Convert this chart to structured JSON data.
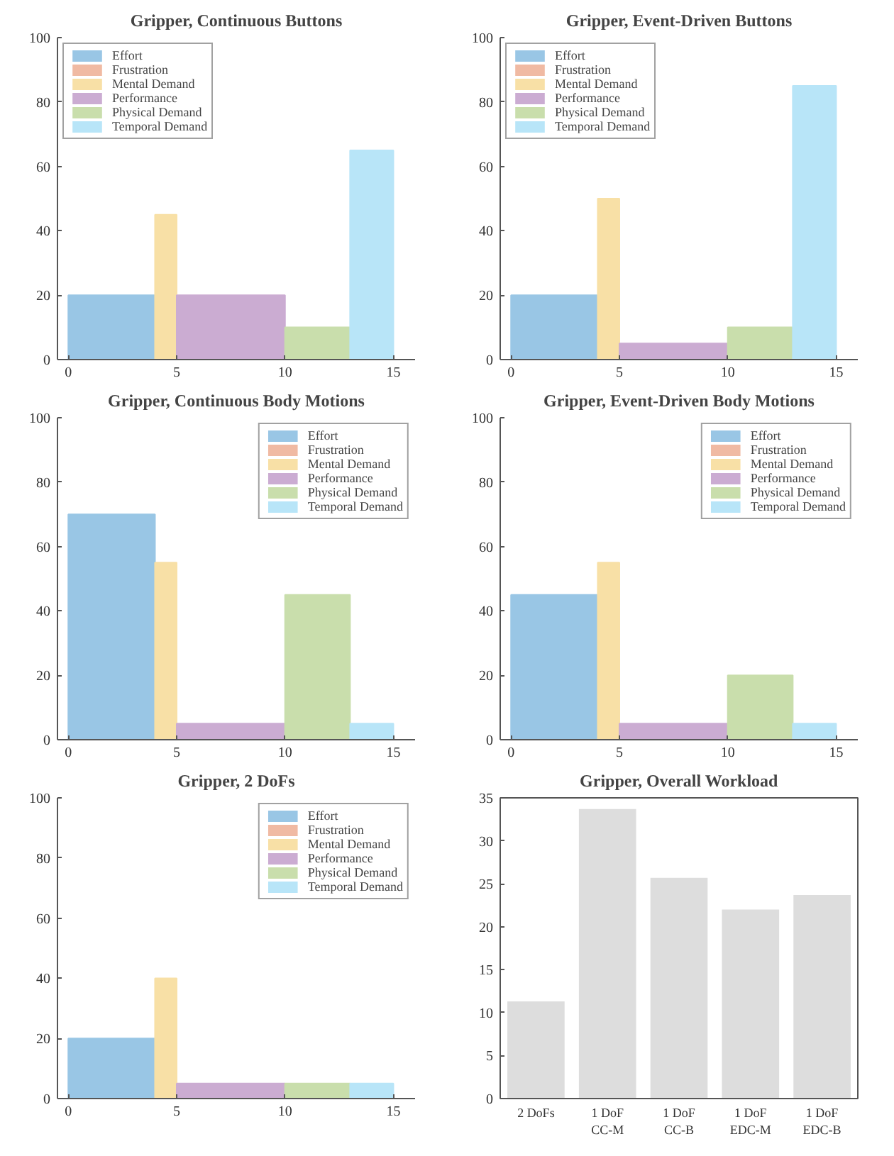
{
  "chart_data": [
    {
      "type": "histogram",
      "title": "Gripper, Continuous Buttons",
      "bins": [
        0,
        4,
        5,
        10,
        13,
        15
      ],
      "xlim": [
        -0.5,
        16
      ],
      "ylim": [
        0,
        100
      ],
      "xticks": [
        0,
        5,
        10,
        15
      ],
      "yticks": [
        0,
        20,
        40,
        60,
        80,
        100
      ],
      "grid": false,
      "legend": "top left",
      "series": [
        {
          "name": "Effort",
          "color": "#99c6e5",
          "values": [
            20,
            null,
            null,
            null,
            null
          ]
        },
        {
          "name": "Frustration",
          "color": "#f0baa3",
          "values": [
            0,
            0,
            0,
            0,
            0
          ]
        },
        {
          "name": "Mental Demand",
          "color": "#f8e0a6",
          "values": [
            null,
            45,
            null,
            null,
            null
          ]
        },
        {
          "name": "Performance",
          "color": "#cbacd2",
          "values": [
            null,
            null,
            20,
            null,
            null
          ]
        },
        {
          "name": "Physical Demand",
          "color": "#c9deac",
          "values": [
            null,
            null,
            null,
            10,
            null
          ]
        },
        {
          "name": "Temporal Demand",
          "color": "#b8e5f8",
          "values": [
            null,
            null,
            null,
            null,
            65
          ]
        }
      ]
    },
    {
      "type": "histogram",
      "title": "Gripper, Event-Driven Buttons",
      "bins": [
        0,
        4,
        5,
        10,
        13,
        15
      ],
      "xlim": [
        -0.5,
        16
      ],
      "ylim": [
        0,
        100
      ],
      "xticks": [
        0,
        5,
        10,
        15
      ],
      "yticks": [
        0,
        20,
        40,
        60,
        80,
        100
      ],
      "grid": false,
      "legend": "top left",
      "series": [
        {
          "name": "Effort",
          "color": "#99c6e5",
          "values": [
            20,
            null,
            null,
            null,
            null
          ]
        },
        {
          "name": "Frustration",
          "color": "#f0baa3",
          "values": [
            0,
            0,
            0,
            0,
            0
          ]
        },
        {
          "name": "Mental Demand",
          "color": "#f8e0a6",
          "values": [
            null,
            50,
            null,
            null,
            null
          ]
        },
        {
          "name": "Performance",
          "color": "#cbacd2",
          "values": [
            null,
            null,
            5,
            null,
            null
          ]
        },
        {
          "name": "Physical Demand",
          "color": "#c9deac",
          "values": [
            null,
            null,
            null,
            10,
            null
          ]
        },
        {
          "name": "Temporal Demand",
          "color": "#b8e5f8",
          "values": [
            null,
            null,
            null,
            null,
            85
          ]
        }
      ]
    },
    {
      "type": "histogram",
      "title": "Gripper, Continuous Body Motions",
      "bins": [
        0,
        4,
        5,
        10,
        13,
        15
      ],
      "xlim": [
        -0.5,
        16
      ],
      "ylim": [
        0,
        100
      ],
      "xticks": [
        0,
        5,
        10,
        15
      ],
      "yticks": [
        0,
        20,
        40,
        60,
        80,
        100
      ],
      "grid": false,
      "legend": "top right",
      "series": [
        {
          "name": "Effort",
          "color": "#99c6e5",
          "values": [
            70,
            null,
            null,
            null,
            null
          ]
        },
        {
          "name": "Frustration",
          "color": "#f0baa3",
          "values": [
            0,
            0,
            0,
            0,
            0
          ]
        },
        {
          "name": "Mental Demand",
          "color": "#f8e0a6",
          "values": [
            null,
            55,
            null,
            null,
            null
          ]
        },
        {
          "name": "Performance",
          "color": "#cbacd2",
          "values": [
            null,
            null,
            5,
            null,
            null
          ]
        },
        {
          "name": "Physical Demand",
          "color": "#c9deac",
          "values": [
            null,
            null,
            null,
            45,
            null
          ]
        },
        {
          "name": "Temporal Demand",
          "color": "#b8e5f8",
          "values": [
            null,
            null,
            null,
            null,
            5
          ]
        }
      ]
    },
    {
      "type": "histogram",
      "title": "Gripper, Event-Driven Body Motions",
      "bins": [
        0,
        4,
        5,
        10,
        13,
        15
      ],
      "xlim": [
        -0.5,
        16
      ],
      "ylim": [
        0,
        100
      ],
      "xticks": [
        0,
        5,
        10,
        15
      ],
      "yticks": [
        0,
        20,
        40,
        60,
        80,
        100
      ],
      "grid": false,
      "legend": "top right",
      "series": [
        {
          "name": "Effort",
          "color": "#99c6e5",
          "values": [
            45,
            null,
            null,
            null,
            null
          ]
        },
        {
          "name": "Frustration",
          "color": "#f0baa3",
          "values": [
            0,
            0,
            0,
            0,
            0
          ]
        },
        {
          "name": "Mental Demand",
          "color": "#f8e0a6",
          "values": [
            null,
            55,
            null,
            null,
            null
          ]
        },
        {
          "name": "Performance",
          "color": "#cbacd2",
          "values": [
            null,
            null,
            5,
            null,
            null
          ]
        },
        {
          "name": "Physical Demand",
          "color": "#c9deac",
          "values": [
            null,
            null,
            null,
            20,
            null
          ]
        },
        {
          "name": "Temporal Demand",
          "color": "#b8e5f8",
          "values": [
            null,
            null,
            null,
            null,
            5
          ]
        }
      ]
    },
    {
      "type": "histogram",
      "title": "Gripper, 2 DoFs",
      "bins": [
        0,
        4,
        5,
        10,
        13,
        15
      ],
      "xlim": [
        -0.5,
        16
      ],
      "ylim": [
        0,
        100
      ],
      "xticks": [
        0,
        5,
        10,
        15
      ],
      "yticks": [
        0,
        20,
        40,
        60,
        80,
        100
      ],
      "grid": false,
      "legend": "top right",
      "series": [
        {
          "name": "Effort",
          "color": "#99c6e5",
          "values": [
            20,
            null,
            null,
            null,
            null
          ]
        },
        {
          "name": "Frustration",
          "color": "#f0baa3",
          "values": [
            0,
            0,
            0,
            0,
            0
          ]
        },
        {
          "name": "Mental Demand",
          "color": "#f8e0a6",
          "values": [
            null,
            40,
            null,
            null,
            null
          ]
        },
        {
          "name": "Performance",
          "color": "#cbacd2",
          "values": [
            null,
            null,
            5,
            null,
            null
          ]
        },
        {
          "name": "Physical Demand",
          "color": "#c9deac",
          "values": [
            null,
            null,
            null,
            5,
            null
          ]
        },
        {
          "name": "Temporal Demand",
          "color": "#b8e5f8",
          "values": [
            null,
            null,
            null,
            null,
            5
          ]
        }
      ]
    },
    {
      "type": "bar",
      "title": "Gripper, Overall Workload",
      "categories": [
        "2 DoFs",
        "1 DoF\nCC-M",
        "1 DoF\nCC-B",
        "1 DoF\nEDC-M",
        "1 DoF\nEDC-B"
      ],
      "values": [
        11.3,
        33.7,
        25.7,
        22.0,
        23.7
      ],
      "color": "#dddddd",
      "ylim": [
        0,
        35
      ],
      "yticks": [
        0,
        5,
        10,
        15,
        20,
        25,
        30,
        35
      ],
      "grid": false
    }
  ]
}
